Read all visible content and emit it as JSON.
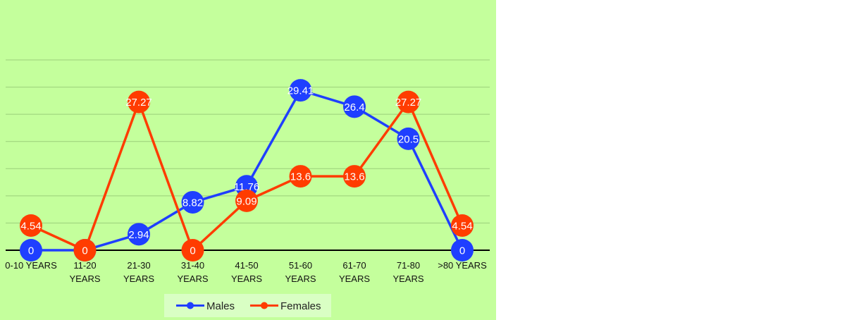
{
  "chart_data": {
    "type": "line",
    "categories": [
      [
        "0-10 YEARS"
      ],
      [
        "11-20",
        "YEARS"
      ],
      [
        "21-30",
        "YEARS"
      ],
      [
        "31-40",
        "YEARS"
      ],
      [
        "41-50",
        "YEARS"
      ],
      [
        "51-60",
        "YEARS"
      ],
      [
        "61-70",
        "YEARS"
      ],
      [
        "71-80",
        "YEARS"
      ],
      [
        ">80 YEARS"
      ]
    ],
    "series": [
      {
        "name": "Males",
        "color": "#1f3fff",
        "values": [
          0,
          0,
          2.94,
          8.82,
          11.76,
          29.41,
          26.4,
          20.5,
          0
        ],
        "labels": [
          "0",
          "",
          "2.94",
          "8.82",
          "11.76",
          "29.41",
          "26.4",
          "20.5",
          "0"
        ]
      },
      {
        "name": "Females",
        "color": "#ff3c00",
        "values": [
          4.54,
          0,
          27.27,
          0,
          9.09,
          13.6,
          13.6,
          27.27,
          4.54
        ],
        "labels": [
          "4.54",
          "0",
          "27.27",
          "0",
          "9.09",
          "13.6",
          "13.6",
          "27.27",
          "4.54"
        ]
      }
    ],
    "ylim": [
      0,
      35
    ],
    "gridlines": true,
    "legend_position": "bottom"
  }
}
